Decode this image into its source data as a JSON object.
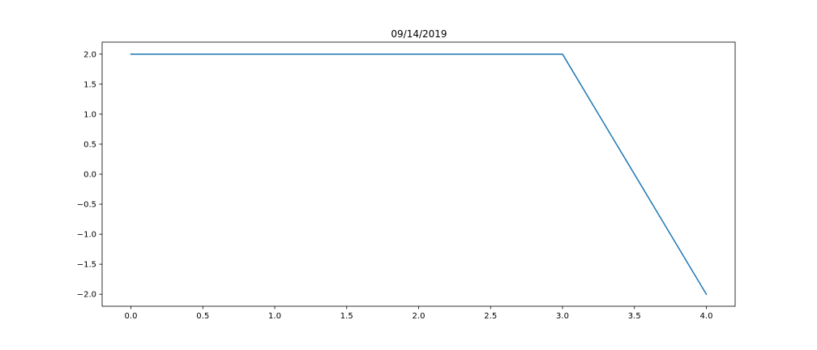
{
  "chart_data": {
    "type": "line",
    "title": "09/14/2019",
    "xlabel": "",
    "ylabel": "",
    "xlim": [
      -0.2,
      4.2
    ],
    "ylim": [
      -2.2,
      2.2
    ],
    "grid": false,
    "x_ticks": [
      0.0,
      0.5,
      1.0,
      1.5,
      2.0,
      2.5,
      3.0,
      3.5,
      4.0
    ],
    "x_tick_labels": [
      "0.0",
      "0.5",
      "1.0",
      "1.5",
      "2.0",
      "2.5",
      "3.0",
      "3.5",
      "4.0"
    ],
    "y_ticks": [
      2.0,
      1.5,
      1.0,
      0.5,
      0.0,
      -0.5,
      -1.0,
      -1.5,
      -2.0
    ],
    "y_tick_labels": [
      "2.0",
      "1.5",
      "1.0",
      "0.5",
      "0.0",
      "−0.5",
      "−1.0",
      "−1.5",
      "−2.0"
    ],
    "series": [
      {
        "color": "#1f77b4",
        "x": [
          0,
          1,
          2,
          3,
          4
        ],
        "y": [
          2,
          2,
          2,
          2,
          -2
        ]
      }
    ]
  }
}
